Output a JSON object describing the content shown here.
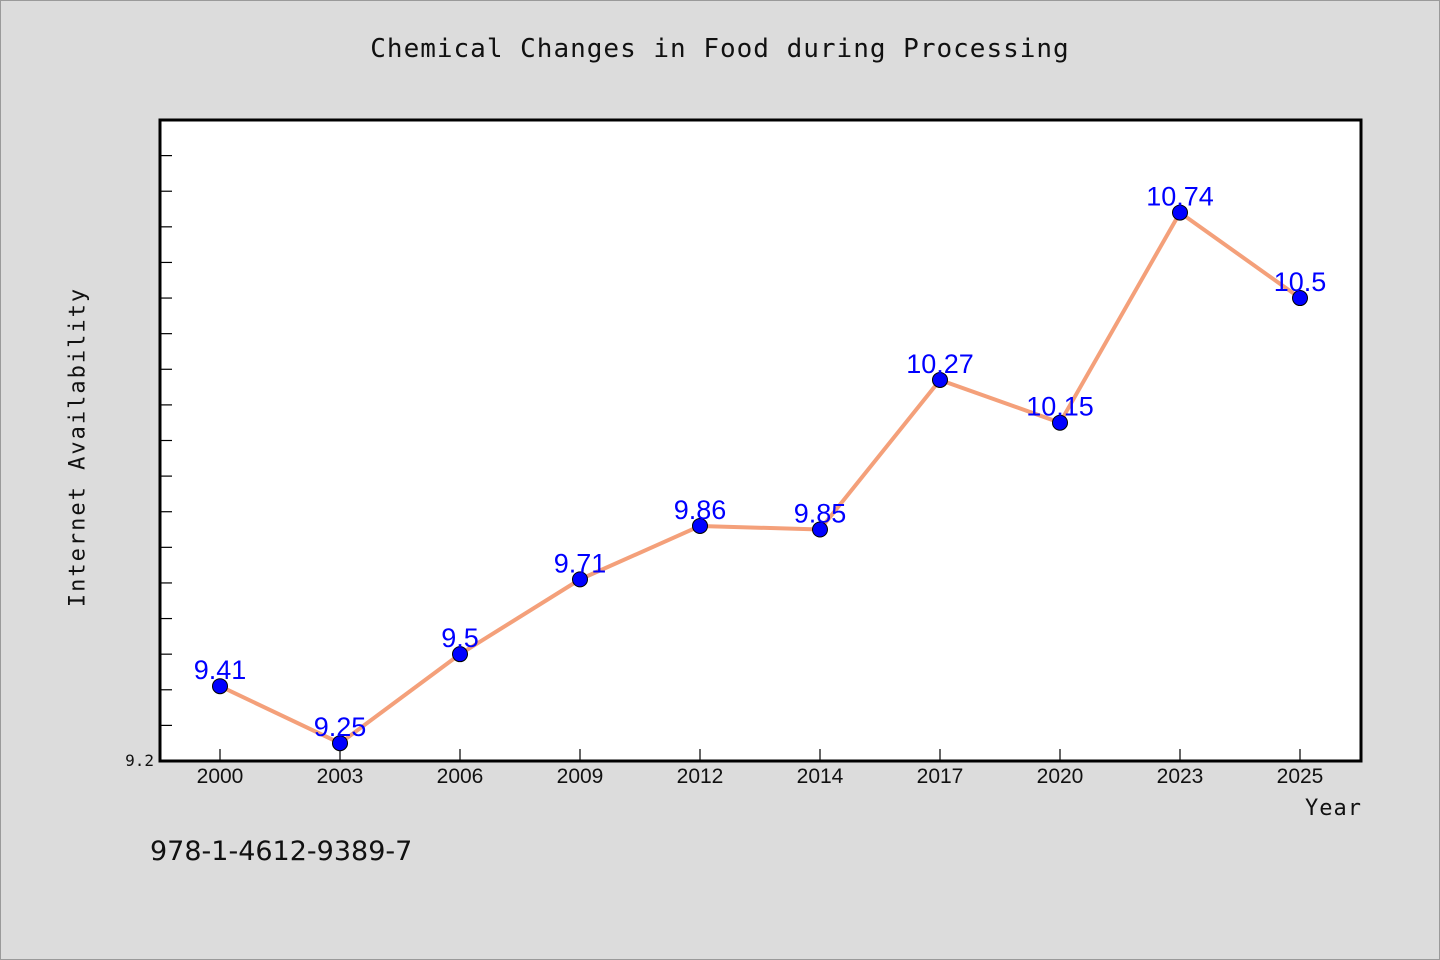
{
  "chart_data": {
    "type": "line",
    "title": "Chemical Changes in Food during Processing",
    "xlabel": "Year",
    "ylabel": "Internet Availability",
    "categories": [
      "2000",
      "2003",
      "2006",
      "2009",
      "2012",
      "2014",
      "2017",
      "2020",
      "2023",
      "2025"
    ],
    "series": [
      {
        "values": [
          9.41,
          9.25,
          9.5,
          9.71,
          9.86,
          9.85,
          10.27,
          10.15,
          10.74,
          10.5
        ],
        "labels": [
          "9.41",
          "9.25",
          "9.5",
          "9.71",
          "9.86",
          "9.85",
          "10.27",
          "10.15",
          "10.74",
          "10.5"
        ]
      }
    ],
    "ylim": [
      9.2,
      11.0
    ],
    "ytick_label": "9.2",
    "grid": false,
    "legend": "none",
    "colors": {
      "line": "#f4a07a",
      "marker": "#0000ff",
      "data_label": "#0000ff",
      "background": "#dcdcdc",
      "plot_background": "#ffffff"
    }
  },
  "footer": {
    "code": "978-1-4612-9389-7"
  }
}
